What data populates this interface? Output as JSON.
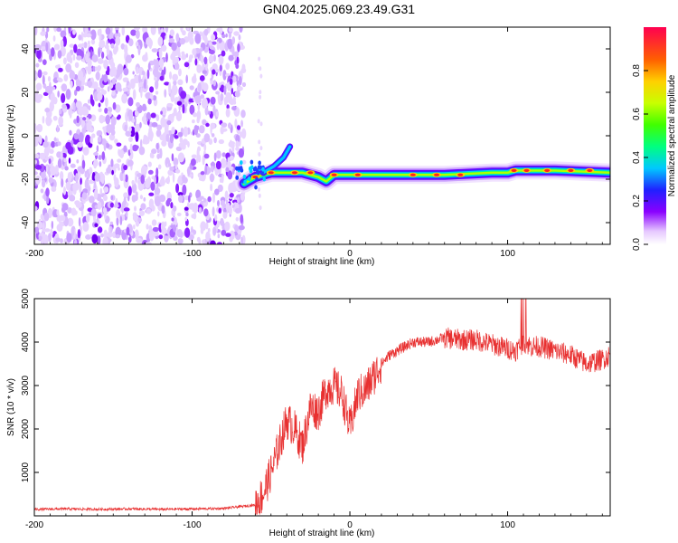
{
  "title": "GN04.2025.069.23.49.G31",
  "chart_data": [
    {
      "type": "heatmap",
      "title": "GN04.2025.069.23.49.G31",
      "xlabel": "Height of straight line (km)",
      "ylabel": "Frequency (Hz)",
      "xlim": [
        -200,
        165
      ],
      "ylim": [
        -50,
        50
      ],
      "x_ticks": [
        -200,
        -100,
        0,
        100
      ],
      "y_ticks": [
        40,
        20,
        0,
        -20,
        -40
      ],
      "colorbar": {
        "label": "Normalized spectral amplitude",
        "range": [
          0,
          1
        ],
        "ticks": [
          "0.0",
          "0.2",
          "0.4",
          "0.6",
          "0.8"
        ]
      },
      "noise_region_x": [
        -200,
        -67
      ],
      "signal_track": [
        {
          "x": -67,
          "y": -22
        },
        {
          "x": -60,
          "y": -19
        },
        {
          "x": -50,
          "y": -17
        },
        {
          "x": -40,
          "y": -17
        },
        {
          "x": -30,
          "y": -17
        },
        {
          "x": -20,
          "y": -19
        },
        {
          "x": -15,
          "y": -21
        },
        {
          "x": -10,
          "y": -18
        },
        {
          "x": 0,
          "y": -18
        },
        {
          "x": 10,
          "y": -18
        },
        {
          "x": 30,
          "y": -18
        },
        {
          "x": 60,
          "y": -18
        },
        {
          "x": 90,
          "y": -17
        },
        {
          "x": 100,
          "y": -17
        },
        {
          "x": 105,
          "y": -16
        },
        {
          "x": 130,
          "y": -16
        },
        {
          "x": 165,
          "y": -17
        }
      ],
      "branch_track": [
        {
          "x": -55,
          "y": -17
        },
        {
          "x": -48,
          "y": -14
        },
        {
          "x": -42,
          "y": -10
        },
        {
          "x": -38,
          "y": -5
        }
      ]
    },
    {
      "type": "line",
      "xlabel": "Height of straight line (km)",
      "ylabel": "SNR (10 * v/v)",
      "xlim": [
        -200,
        165
      ],
      "ylim": [
        0,
        5000
      ],
      "x_ticks": [
        -200,
        -100,
        0,
        100
      ],
      "y_ticks": [
        1000,
        2000,
        3000,
        4000,
        5000
      ],
      "color": "#e83030",
      "series": [
        {
          "x": [
            -200,
            -180,
            -160,
            -140,
            -120,
            -100,
            -80,
            -60,
            -55,
            -50,
            -45,
            -40,
            -35,
            -30,
            -25,
            -20,
            -15,
            -10,
            -5,
            0,
            5,
            10,
            15,
            20,
            25,
            30,
            35,
            40,
            50,
            60,
            70,
            80,
            90,
            100,
            105,
            110,
            115,
            120,
            130,
            140,
            150,
            160,
            165
          ],
          "values": [
            150,
            160,
            150,
            160,
            150,
            160,
            170,
            250,
            500,
            1000,
            1600,
            2200,
            2000,
            1600,
            2500,
            2400,
            2900,
            3000,
            2800,
            2000,
            2800,
            2900,
            3200,
            3500,
            3700,
            3800,
            3900,
            4000,
            4000,
            4100,
            4050,
            4050,
            3950,
            3850,
            3800,
            4000,
            3900,
            3900,
            3800,
            3700,
            3500,
            3600,
            3700
          ]
        }
      ]
    }
  ]
}
